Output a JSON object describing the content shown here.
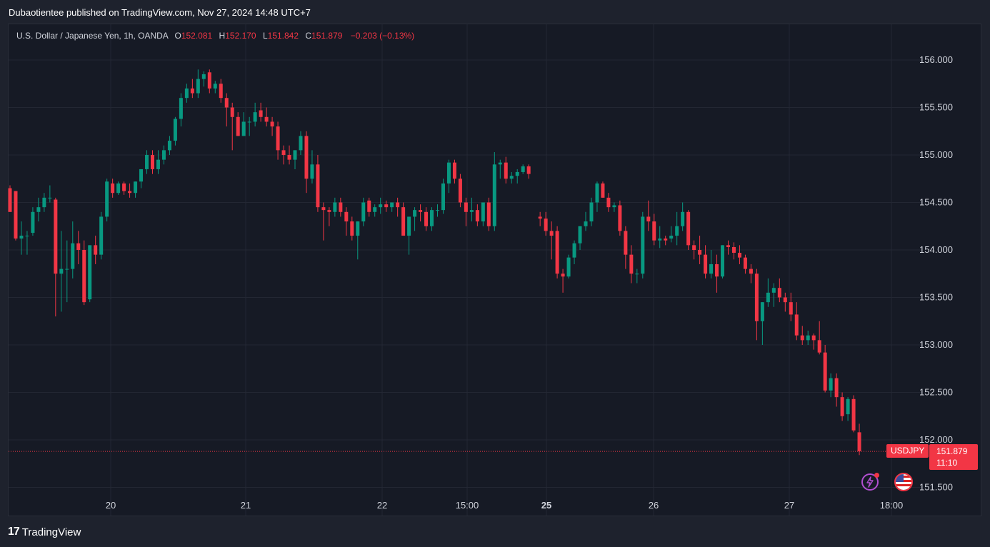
{
  "header": {
    "published": "Dubaotientee published on TradingView.com, Nov 27, 2024 14:48 UTC+7"
  },
  "legend": {
    "symbol": "U.S. Dollar / Japanese Yen, 1h, OANDA",
    "o_label": "O",
    "o_value": "152.081",
    "h_label": "H",
    "h_value": "152.170",
    "l_label": "L",
    "l_value": "151.842",
    "c_label": "C",
    "c_value": "151.879",
    "change": "−0.203 (−0.13%)"
  },
  "price_tag": {
    "symbol": "USDJPY",
    "price": "151.879",
    "countdown": "11:10"
  },
  "brand": {
    "logo": "17",
    "name": "TradingView"
  },
  "icons": [
    "bolt-icon",
    "us-flag-icon"
  ],
  "colors": {
    "up": "#089981",
    "down": "#f23645",
    "background": "#161a25",
    "grid": "#232733"
  },
  "chart_data": {
    "type": "candlestick",
    "symbol": "USDJPY",
    "interval": "1h",
    "ylim": [
      151.3,
      156.3
    ],
    "y_ticks": [
      "156.000",
      "155.500",
      "155.000",
      "154.500",
      "154.000",
      "153.500",
      "153.000",
      "152.500",
      "152.000",
      "151.500"
    ],
    "x_ticks": [
      "20",
      "21",
      "22",
      "15:00",
      "25",
      "26",
      "27",
      "18:00"
    ],
    "last_price": 151.879,
    "grid": true,
    "candles": [
      [
        154.65,
        154.68,
        154.4,
        154.4
      ],
      [
        154.62,
        154.62,
        154.1,
        154.12
      ],
      [
        154.12,
        154.3,
        153.95,
        154.15
      ],
      [
        154.15,
        154.2,
        153.95,
        154.15
      ],
      [
        154.18,
        154.45,
        154.15,
        154.4
      ],
      [
        154.4,
        154.55,
        154.3,
        154.45
      ],
      [
        154.45,
        154.6,
        154.4,
        154.55
      ],
      [
        154.55,
        154.68,
        154.5,
        154.55
      ],
      [
        154.53,
        154.55,
        153.3,
        153.75
      ],
      [
        153.75,
        154.2,
        153.35,
        153.8
      ],
      [
        153.8,
        154.1,
        153.45,
        153.8
      ],
      [
        153.8,
        154.3,
        153.7,
        154.07
      ],
      [
        154.07,
        154.2,
        153.85,
        154.0
      ],
      [
        154.0,
        154.1,
        153.42,
        153.45
      ],
      [
        153.48,
        154.05,
        153.45,
        154.05
      ],
      [
        154.05,
        154.15,
        153.85,
        153.95
      ],
      [
        153.95,
        154.4,
        153.9,
        154.35
      ],
      [
        154.35,
        154.75,
        154.3,
        154.72
      ],
      [
        154.7,
        154.75,
        154.55,
        154.6
      ],
      [
        154.6,
        154.72,
        154.58,
        154.7
      ],
      [
        154.7,
        154.72,
        154.58,
        154.62
      ],
      [
        154.62,
        154.7,
        154.55,
        154.6
      ],
      [
        154.6,
        154.72,
        154.55,
        154.72
      ],
      [
        154.72,
        154.85,
        154.65,
        154.85
      ],
      [
        154.85,
        155.05,
        154.8,
        155.0
      ],
      [
        155.0,
        155.05,
        154.8,
        154.85
      ],
      [
        154.85,
        155.05,
        154.8,
        154.95
      ],
      [
        154.95,
        155.1,
        154.9,
        155.05
      ],
      [
        155.05,
        155.2,
        155.0,
        155.15
      ],
      [
        155.15,
        155.4,
        155.1,
        155.38
      ],
      [
        155.38,
        155.65,
        155.3,
        155.6
      ],
      [
        155.6,
        155.75,
        155.55,
        155.7
      ],
      [
        155.7,
        155.8,
        155.6,
        155.65
      ],
      [
        155.65,
        155.9,
        155.6,
        155.8
      ],
      [
        155.8,
        155.88,
        155.72,
        155.85
      ],
      [
        155.87,
        155.9,
        155.65,
        155.7
      ],
      [
        155.7,
        155.78,
        155.65,
        155.75
      ],
      [
        155.75,
        155.8,
        155.55,
        155.6
      ],
      [
        155.6,
        155.65,
        155.3,
        155.5
      ],
      [
        155.5,
        155.55,
        155.05,
        155.4
      ],
      [
        155.4,
        155.45,
        155.2,
        155.2
      ],
      [
        155.2,
        155.45,
        155.2,
        155.35
      ],
      [
        155.35,
        155.4,
        155.2,
        155.35
      ],
      [
        155.35,
        155.55,
        155.3,
        155.45
      ],
      [
        155.47,
        155.55,
        155.35,
        155.4
      ],
      [
        155.4,
        155.5,
        155.3,
        155.35
      ],
      [
        155.35,
        155.4,
        155.2,
        155.3
      ],
      [
        155.3,
        155.35,
        154.95,
        155.05
      ],
      [
        155.05,
        155.1,
        154.9,
        155.0
      ],
      [
        155.0,
        155.1,
        154.9,
        154.95
      ],
      [
        154.95,
        155.05,
        154.85,
        155.05
      ],
      [
        155.05,
        155.25,
        155.0,
        155.2
      ],
      [
        155.2,
        155.25,
        154.6,
        154.75
      ],
      [
        154.75,
        155.05,
        154.7,
        154.9
      ],
      [
        154.9,
        155.0,
        154.4,
        154.45
      ],
      [
        154.45,
        154.5,
        154.1,
        154.42
      ],
      [
        154.42,
        154.45,
        154.25,
        154.4
      ],
      [
        154.4,
        154.55,
        154.35,
        154.5
      ],
      [
        154.5,
        154.55,
        154.35,
        154.4
      ],
      [
        154.4,
        154.45,
        154.15,
        154.3
      ],
      [
        154.3,
        154.35,
        154.1,
        154.15
      ],
      [
        154.15,
        154.3,
        153.9,
        154.3
      ],
      [
        154.3,
        154.55,
        154.25,
        154.5
      ],
      [
        154.52,
        154.55,
        154.35,
        154.4
      ],
      [
        154.4,
        154.48,
        154.35,
        154.45
      ],
      [
        154.45,
        154.55,
        154.38,
        154.48
      ],
      [
        154.48,
        154.52,
        154.4,
        154.45
      ],
      [
        154.45,
        154.5,
        154.4,
        154.5
      ],
      [
        154.5,
        154.55,
        154.35,
        154.45
      ],
      [
        154.45,
        154.5,
        154.15,
        154.15
      ],
      [
        154.15,
        154.35,
        153.95,
        154.35
      ],
      [
        154.35,
        154.45,
        154.2,
        154.42
      ],
      [
        154.42,
        154.48,
        154.3,
        154.4
      ],
      [
        154.4,
        154.45,
        154.2,
        154.25
      ],
      [
        154.25,
        154.45,
        154.2,
        154.42
      ],
      [
        154.42,
        154.48,
        154.35,
        154.42
      ],
      [
        154.42,
        154.75,
        154.38,
        154.7
      ],
      [
        154.7,
        154.95,
        154.6,
        154.92
      ],
      [
        154.92,
        154.95,
        154.7,
        154.75
      ],
      [
        154.75,
        154.8,
        154.45,
        154.5
      ],
      [
        154.5,
        154.55,
        154.25,
        154.4
      ],
      [
        154.4,
        154.55,
        154.3,
        154.42
      ],
      [
        154.42,
        154.48,
        154.25,
        154.3
      ],
      [
        154.3,
        154.5,
        154.25,
        154.5
      ],
      [
        154.5,
        154.55,
        154.2,
        154.25
      ],
      [
        154.25,
        155.03,
        154.2,
        154.9
      ],
      [
        154.9,
        154.95,
        154.75,
        154.92
      ],
      [
        154.92,
        154.98,
        154.7,
        154.75
      ],
      [
        154.75,
        154.82,
        154.7,
        154.78
      ],
      [
        154.78,
        154.85,
        154.7,
        154.82
      ],
      [
        154.82,
        154.9,
        154.8,
        154.88
      ],
      [
        154.88,
        154.9,
        154.75,
        154.8
      ],
      [
        154.35,
        154.4,
        154.25,
        154.33
      ],
      [
        154.33,
        154.4,
        154.15,
        154.2
      ],
      [
        154.2,
        154.3,
        153.9,
        154.15
      ],
      [
        154.2,
        154.25,
        153.7,
        153.75
      ],
      [
        153.75,
        153.8,
        153.55,
        153.72
      ],
      [
        153.72,
        153.95,
        153.7,
        153.92
      ],
      [
        153.92,
        154.1,
        153.85,
        154.07
      ],
      [
        154.07,
        154.25,
        154.0,
        154.25
      ],
      [
        154.25,
        154.4,
        154.2,
        154.3
      ],
      [
        154.3,
        154.55,
        154.25,
        154.5
      ],
      [
        154.5,
        154.72,
        154.4,
        154.7
      ],
      [
        154.7,
        154.72,
        154.55,
        154.55
      ],
      [
        154.55,
        154.6,
        154.4,
        154.45
      ],
      [
        154.45,
        154.5,
        154.4,
        154.47
      ],
      [
        154.47,
        154.52,
        154.15,
        154.2
      ],
      [
        154.2,
        154.25,
        153.8,
        153.95
      ],
      [
        153.95,
        154.05,
        153.65,
        153.75
      ],
      [
        153.75,
        153.8,
        153.65,
        153.75
      ],
      [
        153.75,
        154.4,
        153.7,
        154.35
      ],
      [
        154.35,
        154.52,
        154.2,
        154.3
      ],
      [
        154.3,
        154.38,
        154.05,
        154.1
      ],
      [
        154.1,
        154.25,
        154.02,
        154.12
      ],
      [
        154.12,
        154.15,
        154.05,
        154.1
      ],
      [
        154.12,
        154.25,
        154.08,
        154.15
      ],
      [
        154.15,
        154.4,
        154.05,
        154.25
      ],
      [
        154.25,
        154.5,
        154.2,
        154.4
      ],
      [
        154.4,
        154.42,
        154.0,
        154.05
      ],
      [
        154.05,
        154.1,
        153.9,
        154.0
      ],
      [
        154.0,
        154.15,
        153.85,
        153.95
      ],
      [
        153.95,
        154.05,
        153.7,
        153.75
      ],
      [
        153.75,
        154.0,
        153.7,
        153.85
      ],
      [
        153.85,
        153.95,
        153.55,
        153.72
      ],
      [
        153.72,
        154.05,
        153.7,
        154.05
      ],
      [
        154.05,
        154.1,
        153.95,
        154.03
      ],
      [
        154.03,
        154.08,
        153.9,
        153.97
      ],
      [
        153.97,
        154.05,
        153.85,
        153.92
      ],
      [
        153.92,
        153.95,
        153.75,
        153.8
      ],
      [
        153.8,
        153.85,
        153.65,
        153.75
      ],
      [
        153.75,
        153.8,
        153.05,
        153.25
      ],
      [
        153.25,
        153.45,
        153.0,
        153.45
      ],
      [
        153.45,
        153.7,
        153.4,
        153.55
      ],
      [
        153.55,
        153.65,
        153.4,
        153.6
      ],
      [
        153.6,
        153.7,
        153.45,
        153.5
      ],
      [
        153.5,
        153.55,
        153.35,
        153.45
      ],
      [
        153.45,
        153.55,
        153.25,
        153.32
      ],
      [
        153.32,
        153.45,
        153.05,
        153.1
      ],
      [
        153.1,
        153.2,
        153.0,
        153.05
      ],
      [
        153.05,
        153.15,
        153.0,
        153.1
      ],
      [
        153.1,
        153.12,
        152.95,
        153.05
      ],
      [
        153.05,
        153.25,
        152.9,
        152.92
      ],
      [
        152.92,
        153.0,
        152.5,
        152.52
      ],
      [
        152.52,
        152.7,
        152.45,
        152.65
      ],
      [
        152.65,
        152.7,
        152.35,
        152.45
      ],
      [
        152.45,
        152.5,
        152.2,
        152.25
      ],
      [
        152.27,
        152.45,
        152.2,
        152.43
      ],
      [
        152.43,
        152.47,
        152.08,
        152.1
      ],
      [
        152.08,
        152.17,
        151.84,
        151.88
      ]
    ]
  }
}
